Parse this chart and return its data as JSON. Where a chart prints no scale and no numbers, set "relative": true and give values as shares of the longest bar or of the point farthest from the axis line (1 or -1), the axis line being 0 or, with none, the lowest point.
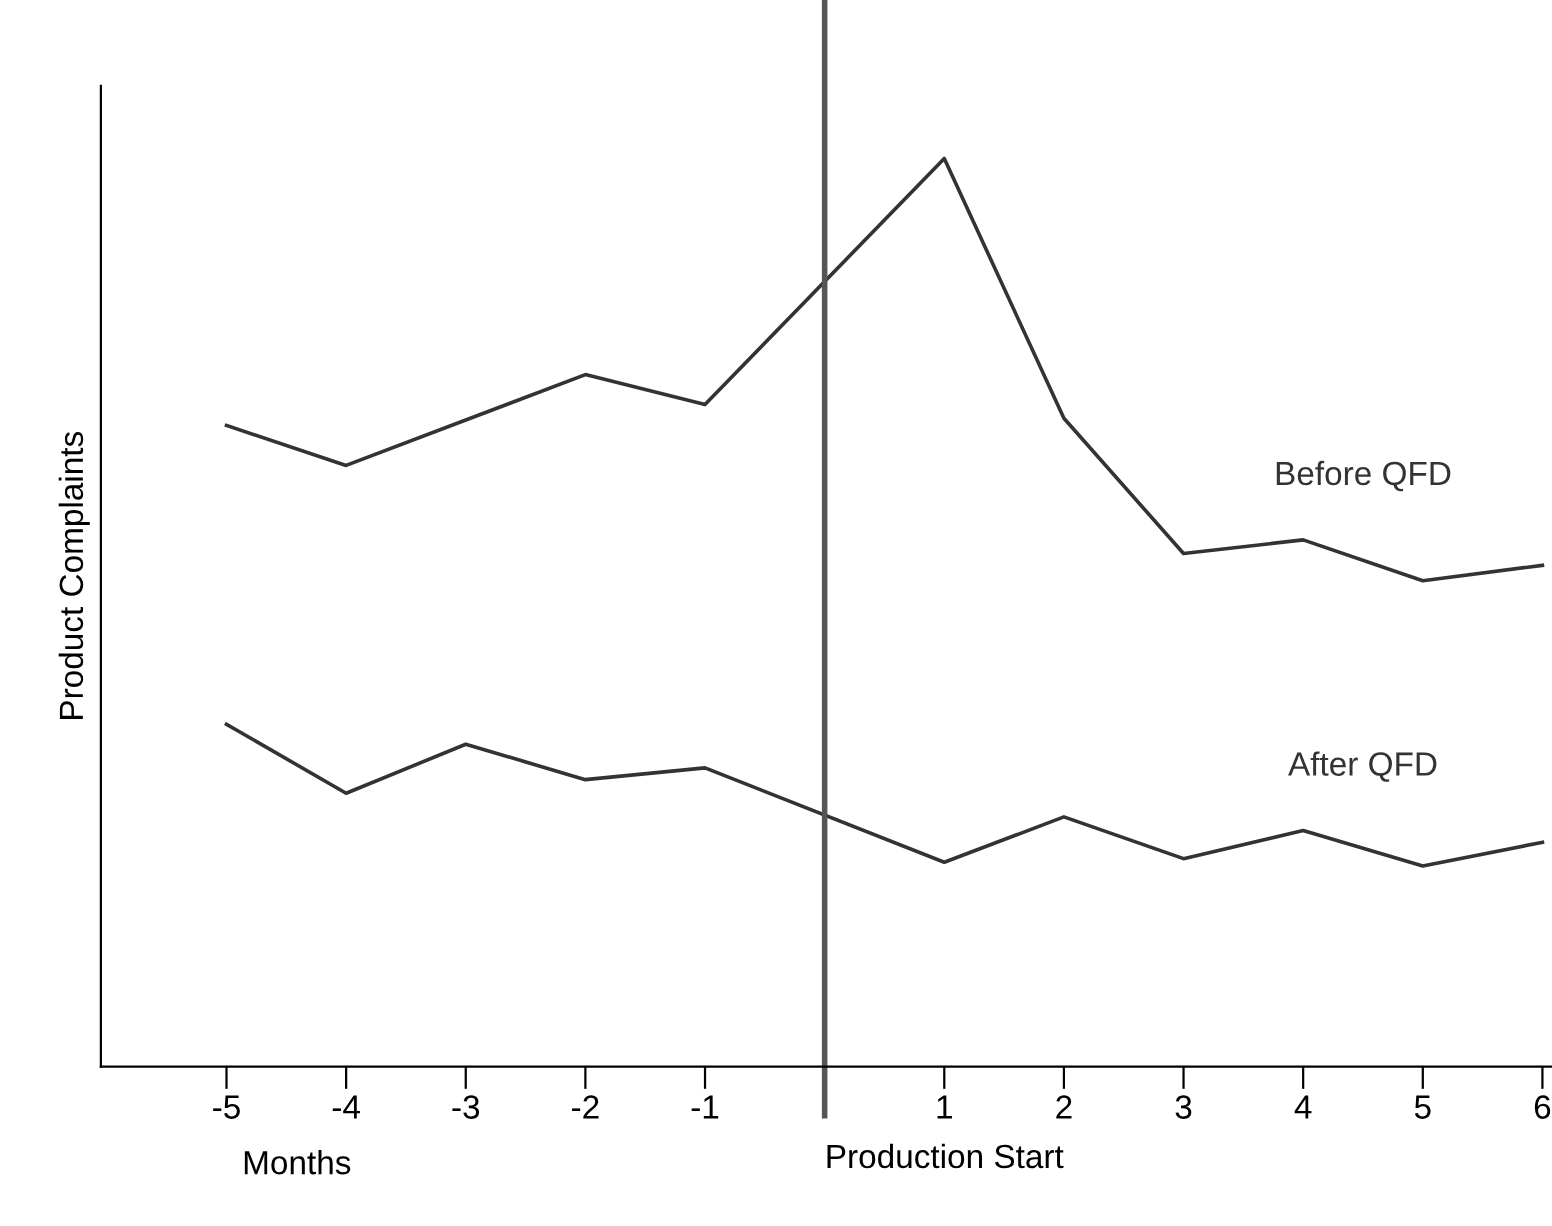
{
  "chart_data": {
    "type": "line",
    "relative": true,
    "ylabel": "Product Complaints",
    "xlabel": "Months",
    "x": [
      -5,
      -4,
      -3,
      -2,
      -1,
      1,
      2,
      3,
      4,
      5,
      6
    ],
    "xlim": [
      -6.05,
      6.08
    ],
    "xticks": [
      -5,
      -4,
      -3,
      -2,
      -1,
      {
        "value": 0,
        "label": null
      },
      1,
      2,
      3,
      4,
      5,
      6
    ],
    "series": [
      {
        "name": "Before QFD",
        "color": "#333333",
        "values": [
          0.706,
          0.662,
          0.712,
          0.762,
          0.729,
          1.0,
          0.714,
          0.565,
          0.58,
          0.535,
          0.552
        ]
      },
      {
        "name": "After QFD",
        "color": "#333333",
        "values": [
          0.377,
          0.301,
          0.355,
          0.316,
          0.329,
          0.225,
          0.275,
          0.229,
          0.26,
          0.221,
          0.247
        ]
      }
    ],
    "ref_lines": [
      {
        "axis": "x",
        "value": 0,
        "label": "Production Start",
        "color": "#555555",
        "line_style": "solid"
      }
    ],
    "grid": false,
    "legend": false,
    "marker": "none",
    "line_style": "solid"
  }
}
